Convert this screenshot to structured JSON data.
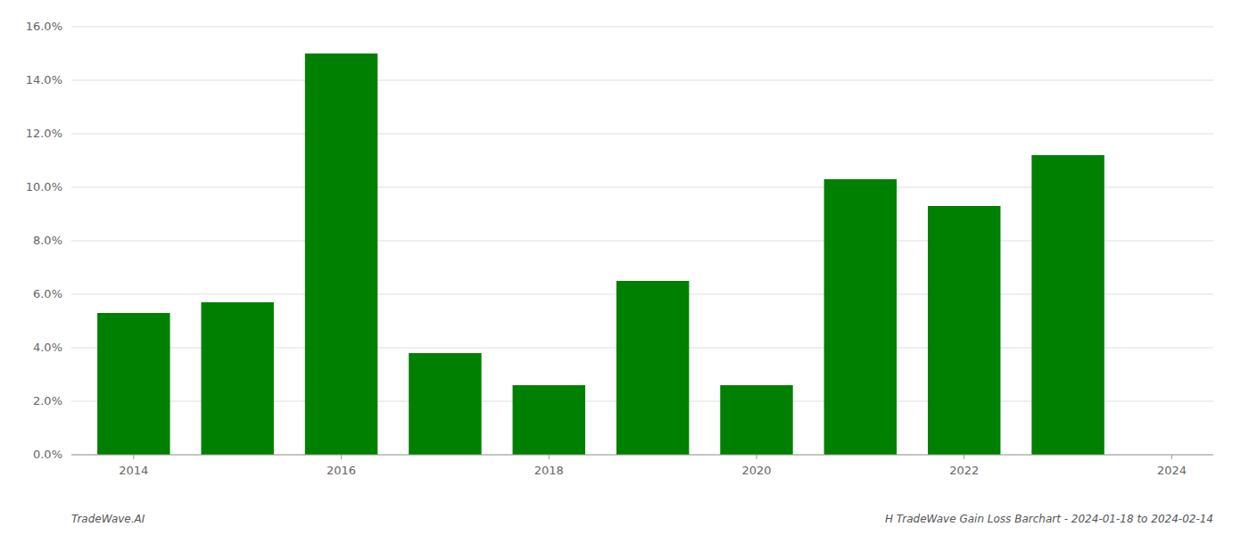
{
  "chart_data": {
    "type": "bar",
    "x": [
      2014,
      2015,
      2016,
      2017,
      2018,
      2019,
      2020,
      2021,
      2022,
      2023
    ],
    "values": [
      0.053,
      0.057,
      0.15,
      0.038,
      0.026,
      0.065,
      0.026,
      0.103,
      0.093,
      0.112
    ],
    "color": "#008000",
    "xlim": [
      2013.4,
      2024.4
    ],
    "xticks": [
      2014,
      2016,
      2018,
      2020,
      2022,
      2024
    ],
    "ylim": [
      0,
      0.16
    ],
    "yticks": [
      {
        "value": 0.0,
        "label": "0.0%"
      },
      {
        "value": 0.02,
        "label": "2.0%"
      },
      {
        "value": 0.04,
        "label": "4.0%"
      },
      {
        "value": 0.06,
        "label": "6.0%"
      },
      {
        "value": 0.08,
        "label": "8.0%"
      },
      {
        "value": 0.1,
        "label": "10.0%"
      },
      {
        "value": 0.12,
        "label": "12.0%"
      },
      {
        "value": 0.14,
        "label": "14.0%"
      },
      {
        "value": 0.16,
        "label": "16.0%"
      }
    ],
    "grid": true,
    "annotations": [
      "TradeWave.AI",
      "H TradeWave Gain Loss Barchart - 2024-01-18 to 2024-02-14"
    ]
  }
}
